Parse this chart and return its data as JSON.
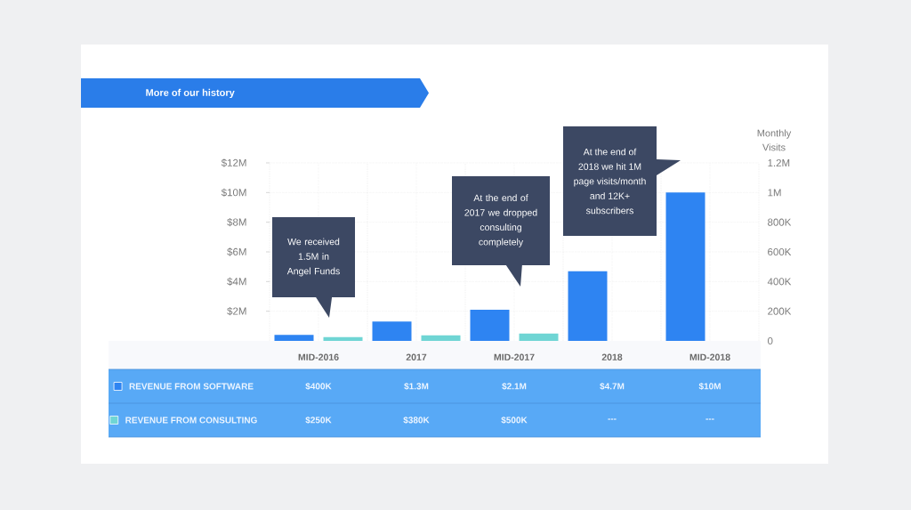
{
  "chart_data": {
    "type": "bar",
    "title": "More of our history",
    "categories": [
      "MID-2016",
      "2017",
      "MID-2017",
      "2018",
      "MID-2018"
    ],
    "series": [
      {
        "name": "REVENUE FROM SOFTWARE",
        "color": "#2e84f2",
        "values": [
          400000,
          1300000,
          2100000,
          4700000,
          10000000
        ],
        "value_labels": [
          "$400K",
          "$1.3M",
          "$2.1M",
          "$4.7M",
          "$10M"
        ]
      },
      {
        "name": "REVENUE FROM CONSULTING",
        "color": "#6fd5d4",
        "values": [
          250000,
          380000,
          500000,
          null,
          null
        ],
        "value_labels": [
          "$250K",
          "$380K",
          "$500K",
          "---",
          "---"
        ]
      }
    ],
    "ylim": [
      0,
      12000000
    ],
    "yticks": [
      {
        "value": 2000000,
        "label": "$2M"
      },
      {
        "value": 4000000,
        "label": "$4M"
      },
      {
        "value": 6000000,
        "label": "$6M"
      },
      {
        "value": 8000000,
        "label": "$8M"
      },
      {
        "value": 10000000,
        "label": "$10M"
      },
      {
        "value": 12000000,
        "label": "$12M"
      }
    ],
    "y2label": "Monthly Visits",
    "y2lim": [
      0,
      1200000
    ],
    "y2ticks": [
      0,
      {
        "value": 200000,
        "label": "200K"
      },
      {
        "value": 400000,
        "label": "400K"
      },
      {
        "value": 600000,
        "label": "600K"
      },
      {
        "value": 800000,
        "label": "800K"
      },
      {
        "value": 1000000,
        "label": "1M"
      },
      {
        "value": 1200000,
        "label": "1.2M"
      }
    ],
    "grid": true,
    "legend": "bottom left",
    "annotations": [
      "We received 1.5M in Angel Funds",
      "At the end of 2017 we dropped consulting completely",
      "At the end of 2018 we hit 1M page visits/month and 12K+ subscribers"
    ]
  }
}
